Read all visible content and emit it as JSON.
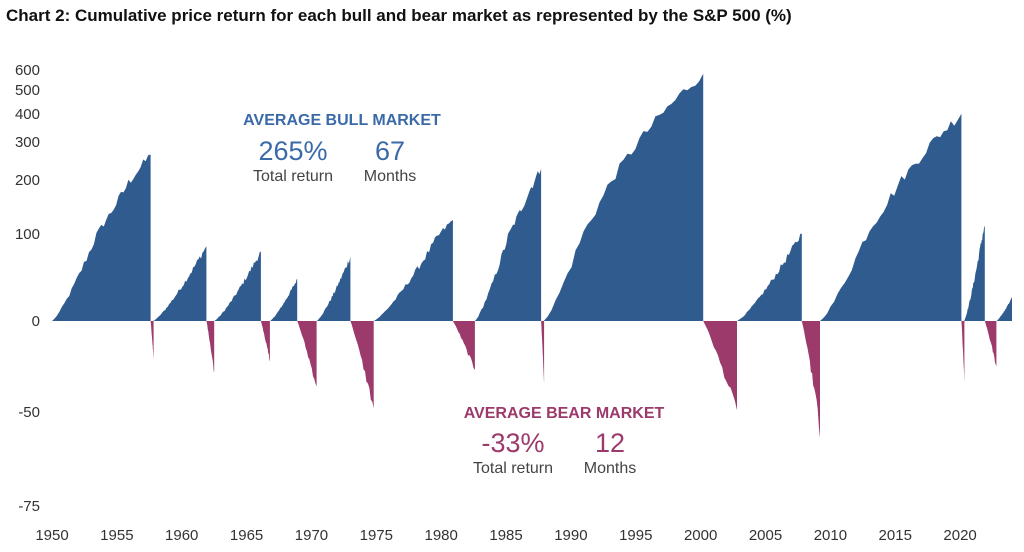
{
  "chart_data": {
    "type": "area",
    "title": "Chart 2: Cumulative price return for each bull and bear market as represented by the S&P 500 (%)",
    "xlabel": "",
    "ylabel": "",
    "xlim": [
      1950,
      2024
    ],
    "ylim": [
      -75,
      650
    ],
    "y_scale": "log-like",
    "grid": false,
    "legend": "none",
    "x_ticks": [
      "1950",
      "1955",
      "1960",
      "1965",
      "1970",
      "1975",
      "1980",
      "1985",
      "1990",
      "1995",
      "2000",
      "2005",
      "2010",
      "2015",
      "2020"
    ],
    "y_ticks": [
      {
        "value": 600,
        "label": "600"
      },
      {
        "value": 500,
        "label": "500"
      },
      {
        "value": 400,
        "label": "400"
      },
      {
        "value": 300,
        "label": "300"
      },
      {
        "value": 200,
        "label": "200"
      },
      {
        "value": 100,
        "label": "100"
      },
      {
        "value": 0,
        "label": "0"
      },
      {
        "value": -50,
        "label": "-50"
      },
      {
        "value": -75,
        "label": "-75"
      }
    ],
    "colors": {
      "bull": "#2f5b8f",
      "bear": "#9b3a6b"
    },
    "series": [
      {
        "kind": "bull",
        "segments": [
          {
            "start": 1950.0,
            "end": 1957.6,
            "peak": 267
          },
          {
            "start": 1957.8,
            "end": 1961.9,
            "peak": 86
          },
          {
            "start": 1962.5,
            "end": 1966.1,
            "peak": 80
          },
          {
            "start": 1966.8,
            "end": 1968.9,
            "peak": 48
          },
          {
            "start": 1970.4,
            "end": 1973.0,
            "peak": 74
          },
          {
            "start": 1974.8,
            "end": 1980.9,
            "peak": 126
          },
          {
            "start": 1982.6,
            "end": 1987.7,
            "peak": 229
          },
          {
            "start": 1987.9,
            "end": 2000.2,
            "peak": 582
          },
          {
            "start": 2002.8,
            "end": 2007.8,
            "peak": 101
          },
          {
            "start": 2009.2,
            "end": 2020.1,
            "peak": 401
          },
          {
            "start": 2020.3,
            "end": 2021.9,
            "peak": 114
          },
          {
            "start": 2022.8,
            "end": 2024.0,
            "peak": 27
          }
        ]
      },
      {
        "kind": "bear",
        "segments": [
          {
            "start": 1957.6,
            "end": 1957.8,
            "trough": -21
          },
          {
            "start": 1961.9,
            "end": 1962.5,
            "trough": -28
          },
          {
            "start": 1966.1,
            "end": 1966.8,
            "trough": -22
          },
          {
            "start": 1968.9,
            "end": 1970.4,
            "trough": -36
          },
          {
            "start": 1973.0,
            "end": 1974.8,
            "trough": -48
          },
          {
            "start": 1980.9,
            "end": 1982.6,
            "trough": -27
          },
          {
            "start": 1987.7,
            "end": 1987.9,
            "trough": -34
          },
          {
            "start": 2000.2,
            "end": 2002.8,
            "trough": -49
          },
          {
            "start": 2007.8,
            "end": 2009.2,
            "trough": -57
          },
          {
            "start": 2020.1,
            "end": 2020.3,
            "trough": -34
          },
          {
            "start": 2021.9,
            "end": 2022.8,
            "trough": -25
          }
        ]
      }
    ],
    "annotations": {
      "bull": {
        "heading": "AVERAGE BULL MARKET",
        "value1": "265%",
        "label1": "Total return",
        "value2": "67",
        "label2": "Months"
      },
      "bear": {
        "heading": "AVERAGE BEAR MARKET",
        "value1": "-33%",
        "label1": "Total return",
        "value2": "12",
        "label2": "Months"
      }
    }
  }
}
